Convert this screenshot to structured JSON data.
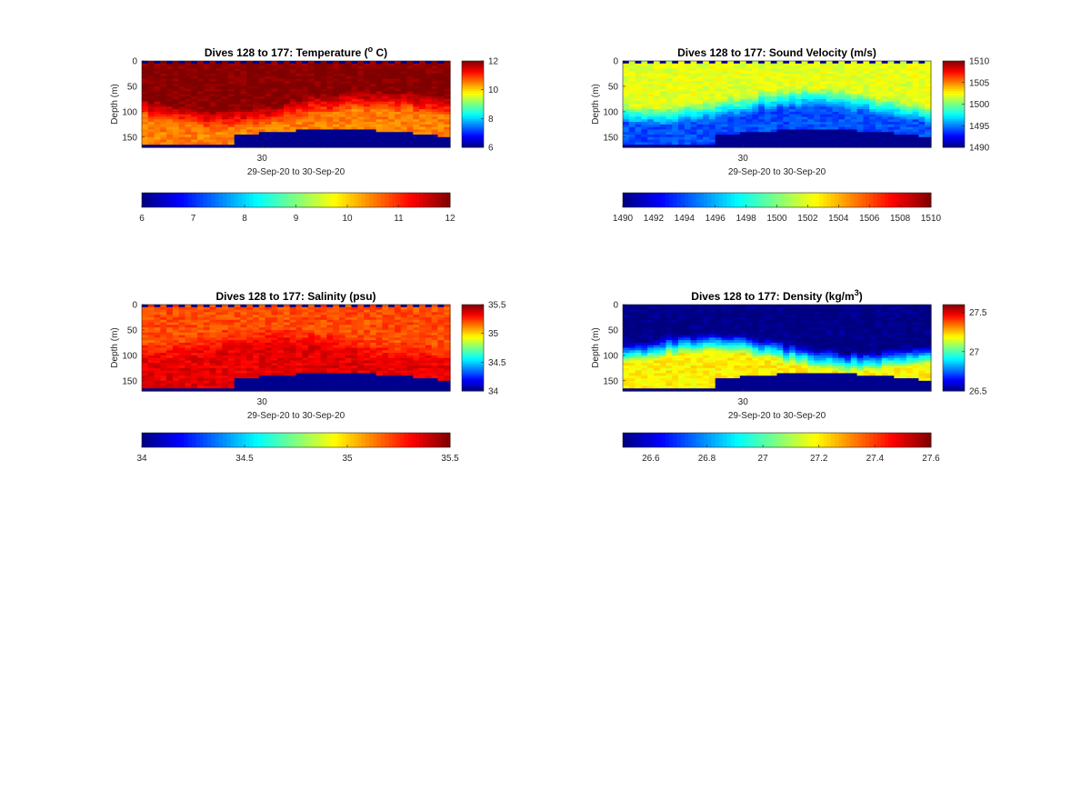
{
  "colors": {
    "jet": [
      "#00007f",
      "#0000ff",
      "#007fff",
      "#00ffff",
      "#7fff7f",
      "#ffff00",
      "#ff7f00",
      "#ff0000",
      "#7f0000"
    ],
    "seafloor": "#00008f",
    "axis": "#262626"
  },
  "chart_data": [
    {
      "type": "heatmap",
      "title": "Dives 128 to 177: Temperature (",
      "title_sup": "o",
      "title_end": " C)",
      "xlabel": "29-Sep-20 to 30-Sep-20",
      "ylabel": "Depth (m)",
      "x_tick_label": "30",
      "y_ticks": [
        "0",
        "50",
        "100",
        "150"
      ],
      "ylim": [
        0,
        170
      ],
      "clim": [
        6,
        12
      ],
      "colorbar_ticks": [
        "12",
        "10",
        "8",
        "6"
      ],
      "h_colorbar_ticks": [
        "6",
        "7",
        "8",
        "9",
        "10",
        "11",
        "12"
      ],
      "x_dives": [
        128,
        177
      ],
      "profile": {
        "surface": 12,
        "thermocline_top": 75,
        "deep": 10.5
      },
      "bottom_depth_start": 165,
      "bottom_depth_end": 150
    },
    {
      "type": "heatmap",
      "title": "Dives 128 to 177: Sound Velocity (m/s)",
      "xlabel": "29-Sep-20 to 30-Sep-20",
      "ylabel": "Depth (m)",
      "x_tick_label": "30",
      "y_ticks": [
        "0",
        "50",
        "100",
        "150"
      ],
      "ylim": [
        0,
        170
      ],
      "clim": [
        1490,
        1510
      ],
      "colorbar_ticks": [
        "1510",
        "1505",
        "1500",
        "1495",
        "1490"
      ],
      "h_colorbar_ticks": [
        "1490",
        "1492",
        "1494",
        "1496",
        "1498",
        "1500",
        "1502",
        "1504",
        "1506",
        "1508",
        "1510"
      ],
      "x_dives": [
        128,
        177
      ],
      "profile": {
        "surface": 1502,
        "thermocline_top": 70,
        "deep": 1494
      },
      "bottom_depth_start": 165,
      "bottom_depth_end": 150
    },
    {
      "type": "heatmap",
      "title": "Dives 128 to 177: Salinity (psu)",
      "xlabel": "",
      "ylabel": "Depth (m)",
      "x_tick_label": "30",
      "x_range_label": "29-Sep-20 to 30-Sep-20",
      "y_ticks": [
        "0",
        "50",
        "100",
        "150"
      ],
      "ylim": [
        0,
        170
      ],
      "clim": [
        34,
        35.5
      ],
      "colorbar_ticks": [
        "35.5",
        "35",
        "34.5",
        "34"
      ],
      "h_colorbar_ticks": [
        "34",
        "34.5",
        "35",
        "35.5"
      ],
      "x_dives": [
        128,
        177
      ],
      "profile": {
        "surface": 35.2,
        "thermocline_top": 60,
        "deep": 35.35
      },
      "bottom_depth_start": 165,
      "bottom_depth_end": 150
    },
    {
      "type": "heatmap",
      "title": "Dives 128 to 177: Density (kg/m",
      "title_sup": "3",
      "title_end": ")",
      "xlabel": "29-Sep-20 to 30-Sep-20",
      "ylabel": "Depth (m)",
      "x_tick_label": "30",
      "y_ticks": [
        "0",
        "50",
        "100",
        "150"
      ],
      "ylim": [
        0,
        170
      ],
      "clim": [
        26.5,
        27.6
      ],
      "colorbar_ticks": [
        "27.5",
        "27",
        "26.5"
      ],
      "h_colorbar_ticks": [
        "26.6",
        "26.8",
        "27",
        "27.2",
        "27.4",
        "27.6"
      ],
      "x_dives": [
        128,
        177
      ],
      "profile": {
        "surface": 26.5,
        "thermocline_top": 75,
        "deep": 27.2
      },
      "bottom_depth_start": 165,
      "bottom_depth_end": 150
    }
  ]
}
